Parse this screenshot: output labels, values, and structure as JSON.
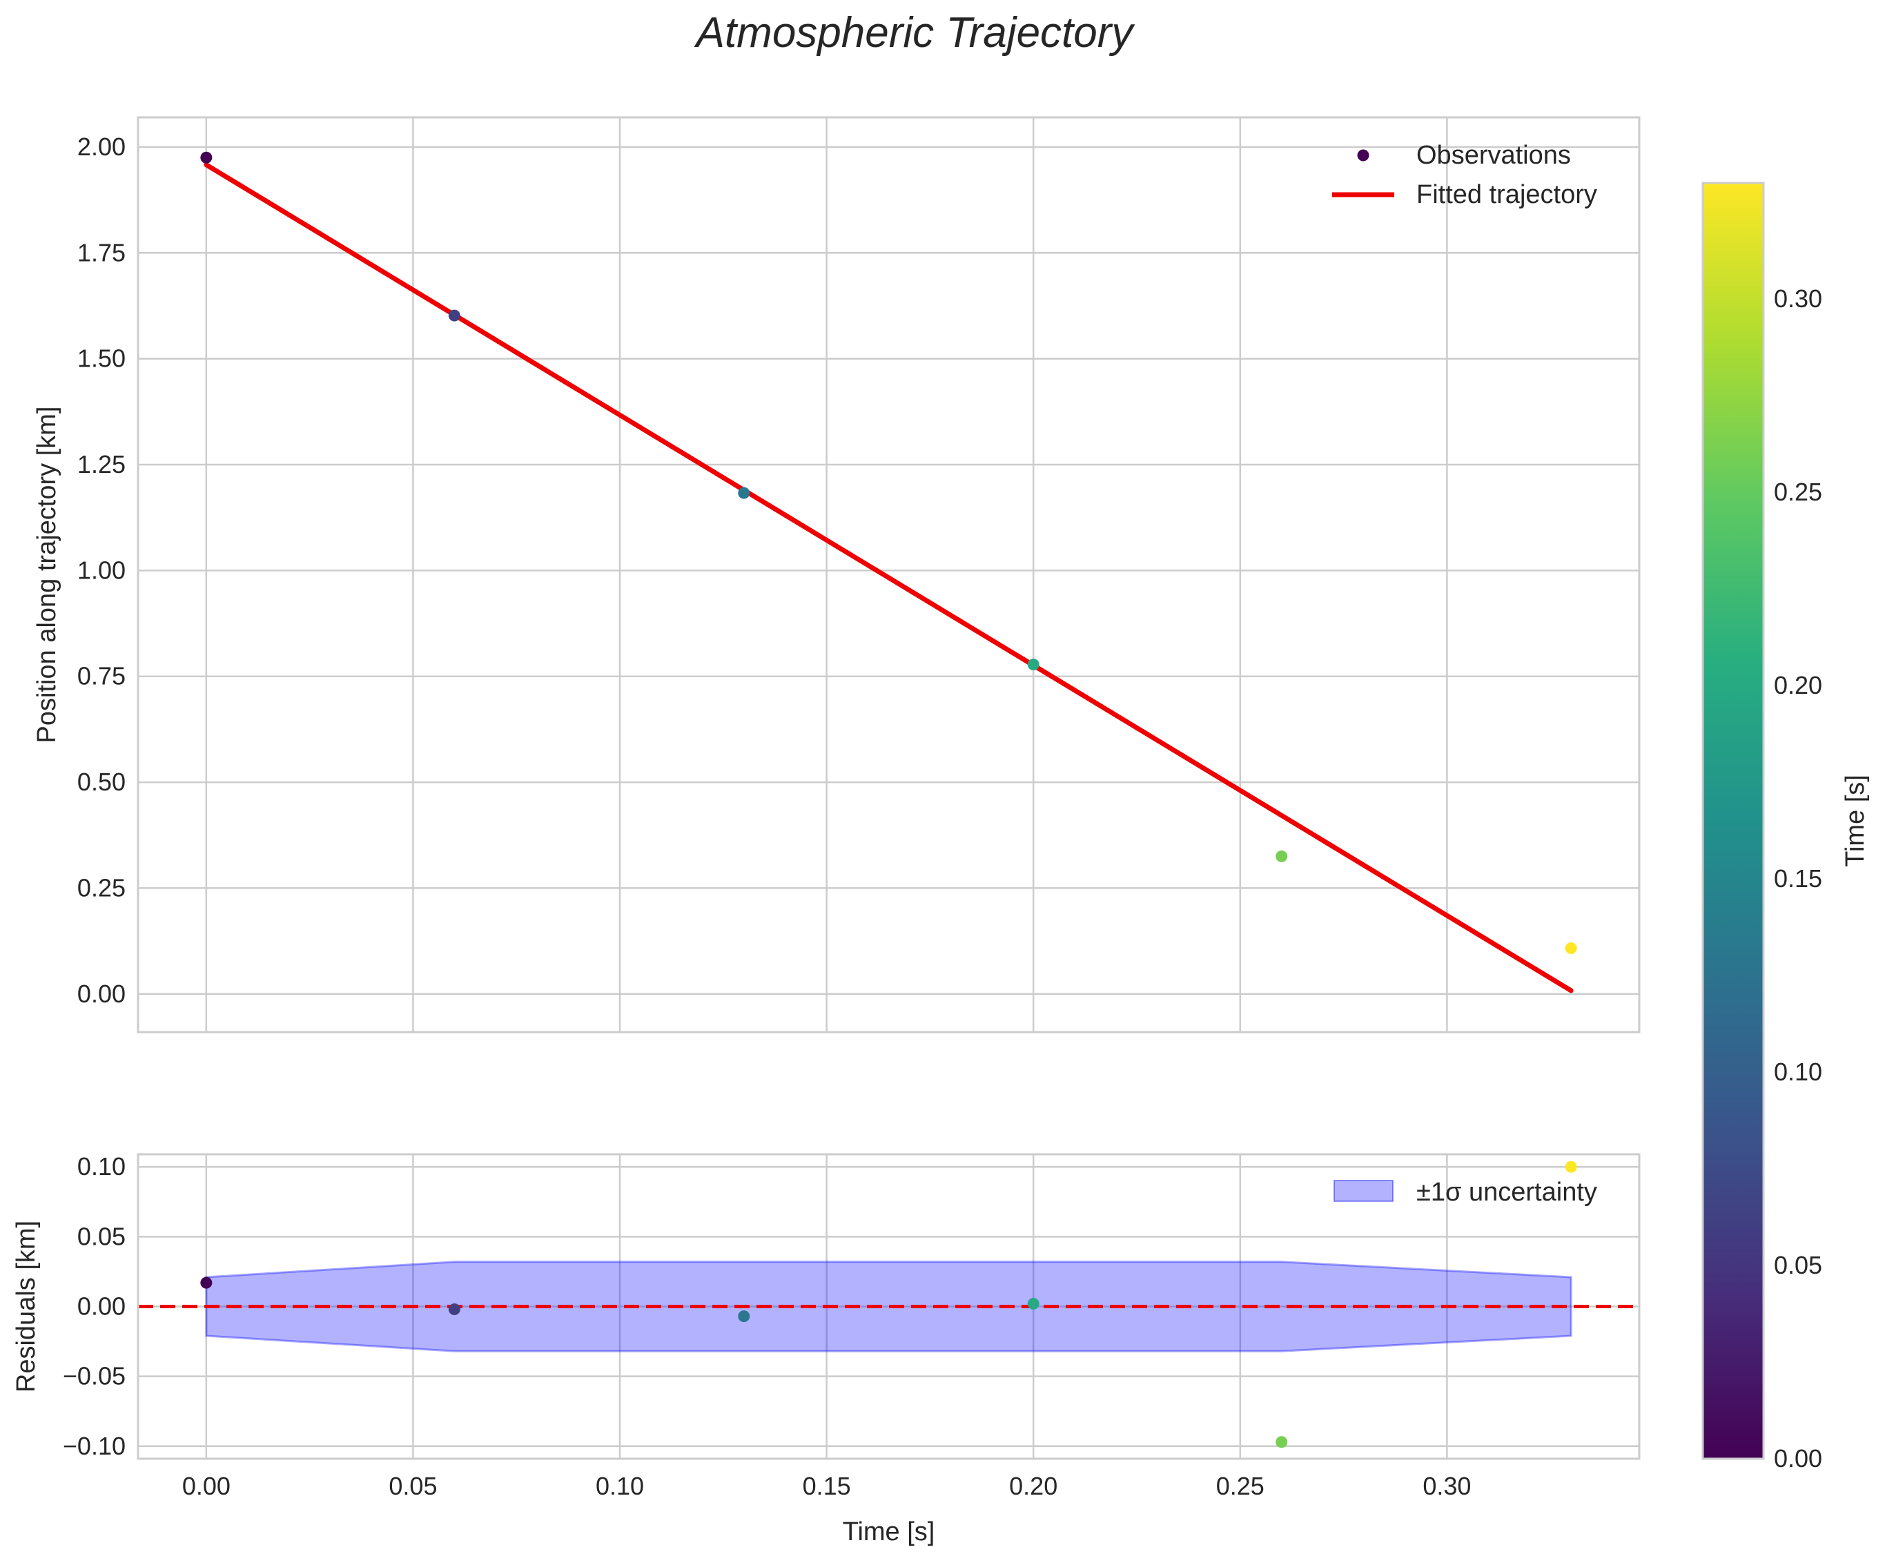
{
  "chart_data": [
    {
      "type": "line",
      "panel": "top",
      "title": "Atmospheric Trajectory",
      "xlabel": "",
      "ylabel": "Position along trajectory [km]",
      "xlim": [
        -0.0165,
        0.3465
      ],
      "ylim": [
        -0.09,
        2.07
      ],
      "xticks": [
        0.0,
        0.05,
        0.1,
        0.15,
        0.2,
        0.25,
        0.3
      ],
      "yticks": [
        0.0,
        0.25,
        0.5,
        0.75,
        1.0,
        1.25,
        1.5,
        1.75,
        2.0
      ],
      "ytick_labels": [
        "0.00",
        "0.25",
        "0.50",
        "0.75",
        "1.00",
        "1.25",
        "1.50",
        "1.75",
        "2.00"
      ],
      "grid": true,
      "legend": {
        "placement": "top-right",
        "entries": [
          "Observations",
          "Fitted trajectory"
        ]
      },
      "series": [
        {
          "name": "Observations",
          "kind": "scatter",
          "color_by": "time",
          "x": [
            0.0,
            0.06,
            0.13,
            0.2,
            0.26,
            0.33
          ],
          "y": [
            1.975,
            1.602,
            1.183,
            0.778,
            0.325,
            0.108
          ]
        },
        {
          "name": "Fitted trajectory",
          "kind": "line",
          "color": "#ee0000",
          "x": [
            0.0,
            0.33
          ],
          "y": [
            1.958,
            0.008
          ]
        }
      ]
    },
    {
      "type": "scatter",
      "panel": "bottom",
      "xlabel": "Time [s]",
      "ylabel": "Residuals [km]",
      "xlim": [
        -0.0165,
        0.3465
      ],
      "ylim": [
        -0.109,
        0.109
      ],
      "xticks": [
        0.0,
        0.05,
        0.1,
        0.15,
        0.2,
        0.25,
        0.3
      ],
      "xtick_labels": [
        "0.00",
        "0.05",
        "0.10",
        "0.15",
        "0.20",
        "0.25",
        "0.30"
      ],
      "yticks": [
        -0.1,
        -0.05,
        0.0,
        0.05,
        0.1
      ],
      "ytick_labels": [
        "−0.10",
        "−0.05",
        "0.00",
        "0.05",
        "0.10"
      ],
      "grid": true,
      "legend": {
        "placement": "top-right",
        "entries": [
          "±1σ uncertainty"
        ]
      },
      "zero_line": {
        "y": 0.0,
        "style": "dashed",
        "color": "#ee0000"
      },
      "band": {
        "name": "±1σ uncertainty",
        "color": "#0000ff",
        "opacity": 0.3,
        "x": [
          0.0,
          0.06,
          0.13,
          0.2,
          0.26,
          0.33
        ],
        "sigma": [
          0.021,
          0.032,
          0.032,
          0.032,
          0.032,
          0.021
        ]
      },
      "series": [
        {
          "name": "Residuals",
          "color_by": "time",
          "x": [
            0.0,
            0.06,
            0.13,
            0.2,
            0.26,
            0.33
          ],
          "y": [
            0.017,
            -0.002,
            -0.007,
            0.002,
            -0.097,
            0.1
          ]
        }
      ]
    }
  ],
  "colorbar": {
    "label": "Time [s]",
    "range": [
      0.0,
      0.33
    ],
    "ticks": [
      0.0,
      0.05,
      0.1,
      0.15,
      0.2,
      0.25,
      0.3
    ],
    "tick_labels": [
      "0.00",
      "0.05",
      "0.10",
      "0.15",
      "0.20",
      "0.25",
      "0.30"
    ],
    "colormap": "viridis"
  },
  "colors": {
    "fit_line": "#ee0000",
    "zero_line": "#ee0000",
    "band_fill": "#0000ff",
    "grid": "#cccccc",
    "frame": "#cccccc"
  }
}
